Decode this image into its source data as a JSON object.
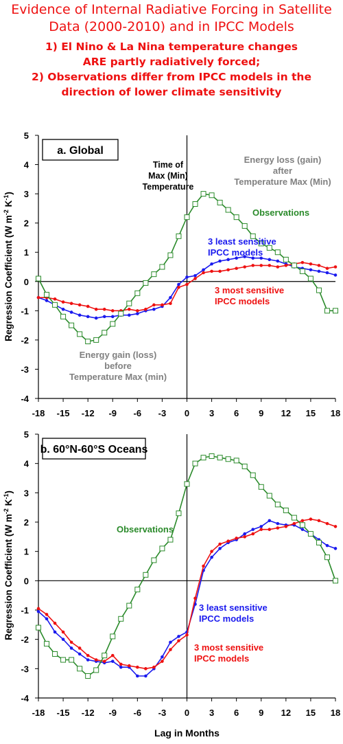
{
  "title": {
    "lines": [
      "Evidence of Internal Radiative Forcing in Satellite",
      "Data (2000-2010)  and in IPCC Models"
    ],
    "sub_lines": [
      "1) El Nino & La Nina temperature changes",
      "ARE partly radiatively forced;",
      "2) Observations differ from IPCC models in the",
      "direction of lower climate sensitivity"
    ]
  },
  "colors": {
    "observations": "#2a8a2a",
    "least_sensitive": "#1a1aee",
    "most_sensitive": "#ee1111",
    "annotation": "#808080",
    "title": "#ee1111"
  },
  "chart_data": [
    {
      "type": "line",
      "panel_label": "a. Global",
      "xlabel": "",
      "ylabel": "Regression Coefficient (W m-2 K-1)",
      "xlim": [
        -18,
        18
      ],
      "ylim": [
        -4,
        5
      ],
      "x_ticks": [
        "-18",
        "-15",
        "-12",
        "-9",
        "-6",
        "-3",
        "0",
        "3",
        "6",
        "9",
        "12",
        "15",
        "18"
      ],
      "y_ticks": [
        "-4",
        "-3",
        "-2",
        "-1",
        "0",
        "1",
        "2",
        "3",
        "4",
        "5"
      ],
      "x": [
        -18,
        -17,
        -16,
        -15,
        -14,
        -13,
        -12,
        -11,
        -10,
        -9,
        -8,
        -7,
        -6,
        -5,
        -4,
        -3,
        -2,
        -1,
        0,
        1,
        2,
        3,
        4,
        5,
        6,
        7,
        8,
        9,
        10,
        11,
        12,
        13,
        14,
        15,
        16,
        17,
        18
      ],
      "series": [
        {
          "name": "Observations",
          "key": "observations",
          "marker": "square",
          "values": [
            0.1,
            -0.45,
            -0.8,
            -1.2,
            -1.5,
            -1.8,
            -2.05,
            -2.0,
            -1.75,
            -1.45,
            -1.1,
            -0.75,
            -0.4,
            -0.05,
            0.25,
            0.5,
            0.9,
            1.55,
            2.2,
            2.65,
            3.0,
            2.95,
            2.7,
            2.45,
            2.2,
            1.9,
            1.55,
            1.3,
            1.15,
            1.0,
            0.75,
            0.55,
            0.35,
            0.1,
            -0.3,
            -1.0,
            -1.0
          ]
        },
        {
          "name": "3 least sensitive IPCC models",
          "key": "least_sensitive",
          "marker": "dot",
          "values": [
            -0.55,
            -0.65,
            -0.8,
            -0.95,
            -1.05,
            -1.15,
            -1.2,
            -1.25,
            -1.2,
            -1.2,
            -1.15,
            -1.15,
            -1.1,
            -1.0,
            -0.95,
            -0.85,
            -0.55,
            -0.1,
            0.15,
            0.2,
            0.4,
            0.6,
            0.7,
            0.75,
            0.8,
            0.85,
            0.8,
            0.8,
            0.75,
            0.7,
            0.6,
            0.5,
            0.45,
            0.4,
            0.35,
            0.3,
            0.22
          ]
        },
        {
          "name": "3 most sensitive IPCC models",
          "key": "most_sensitive",
          "marker": "dot",
          "values": [
            -0.55,
            -0.55,
            -0.6,
            -0.7,
            -0.75,
            -0.8,
            -0.85,
            -0.95,
            -0.95,
            -1.0,
            -1.0,
            -0.95,
            -1.0,
            -0.95,
            -0.8,
            -0.8,
            -0.75,
            -0.2,
            -0.1,
            0.1,
            0.3,
            0.35,
            0.35,
            0.4,
            0.45,
            0.5,
            0.55,
            0.55,
            0.55,
            0.5,
            0.55,
            0.6,
            0.65,
            0.6,
            0.55,
            0.45,
            0.5
          ]
        }
      ],
      "annotations": [
        {
          "text_lines": [
            "Time of",
            "Max (Min)",
            "Temperature"
          ],
          "color": "black"
        },
        {
          "text_lines": [
            "Energy loss (gain)",
            "after",
            "Temperature Max (Min)"
          ],
          "color": "grey"
        },
        {
          "text_lines": [
            "Observations"
          ],
          "color": "green"
        },
        {
          "text_lines": [
            "3 least sensitive",
            "IPCC models"
          ],
          "color": "blue"
        },
        {
          "text_lines": [
            "3 most sensitive",
            "IPCC models"
          ],
          "color": "red"
        },
        {
          "text_lines": [
            "Energy gain (loss)",
            "before",
            "Temperature Max (min)"
          ],
          "color": "grey"
        }
      ]
    },
    {
      "type": "line",
      "panel_label": "b. 60°N-60°S Oceans",
      "xlabel": "Lag in Months",
      "ylabel": "Regression Coefficient (W m-2 K-1)",
      "xlim": [
        -18,
        18
      ],
      "ylim": [
        -4,
        5
      ],
      "x_ticks": [
        "-18",
        "-15",
        "-12",
        "-9",
        "-6",
        "-3",
        "0",
        "3",
        "6",
        "9",
        "12",
        "15",
        "18"
      ],
      "y_ticks": [
        "-4",
        "-3",
        "-2",
        "-1",
        "0",
        "1",
        "2",
        "3",
        "4",
        "5"
      ],
      "x": [
        -18,
        -17,
        -16,
        -15,
        -14,
        -13,
        -12,
        -11,
        -10,
        -9,
        -8,
        -7,
        -6,
        -5,
        -4,
        -3,
        -2,
        -1,
        0,
        1,
        2,
        3,
        4,
        5,
        6,
        7,
        8,
        9,
        10,
        11,
        12,
        13,
        14,
        15,
        16,
        17,
        18
      ],
      "series": [
        {
          "name": "Observations",
          "key": "observations",
          "marker": "square",
          "values": [
            -1.6,
            -2.15,
            -2.5,
            -2.7,
            -2.7,
            -3.0,
            -3.25,
            -3.05,
            -2.55,
            -1.9,
            -1.3,
            -0.85,
            -0.3,
            0.2,
            0.7,
            1.1,
            1.4,
            2.3,
            3.3,
            4.0,
            4.2,
            4.25,
            4.2,
            4.15,
            4.1,
            3.9,
            3.6,
            3.2,
            2.9,
            2.6,
            2.4,
            2.15,
            1.9,
            1.6,
            1.3,
            0.8,
            0.0
          ]
        },
        {
          "name": "3 least sensitive IPCC models",
          "key": "least_sensitive",
          "marker": "dot",
          "values": [
            -1.05,
            -1.3,
            -1.75,
            -2.0,
            -2.3,
            -2.5,
            -2.7,
            -2.75,
            -2.8,
            -2.75,
            -2.95,
            -2.95,
            -3.25,
            -3.25,
            -3.0,
            -2.6,
            -2.1,
            -1.9,
            -1.75,
            -0.8,
            0.35,
            0.8,
            1.1,
            1.3,
            1.4,
            1.6,
            1.75,
            1.85,
            2.05,
            1.95,
            1.9,
            1.9,
            1.75,
            1.6,
            1.4,
            1.2,
            1.1
          ]
        },
        {
          "name": "3 most sensitive IPCC models",
          "key": "most_sensitive",
          "marker": "dot",
          "values": [
            -0.95,
            -1.15,
            -1.45,
            -1.75,
            -2.1,
            -2.3,
            -2.55,
            -2.7,
            -2.75,
            -2.55,
            -2.85,
            -2.9,
            -2.95,
            -3.0,
            -2.95,
            -2.75,
            -2.35,
            -2.05,
            -1.85,
            -0.6,
            0.5,
            1.0,
            1.25,
            1.35,
            1.45,
            1.5,
            1.6,
            1.75,
            1.75,
            1.8,
            1.85,
            1.95,
            2.05,
            2.1,
            2.05,
            1.95,
            1.85
          ]
        }
      ],
      "annotations": [
        {
          "text_lines": [
            "Observations"
          ],
          "color": "green"
        },
        {
          "text_lines": [
            "3 least sensitive",
            "IPCC models"
          ],
          "color": "blue"
        },
        {
          "text_lines": [
            "3 most sensitive",
            "IPCC models"
          ],
          "color": "red"
        }
      ]
    }
  ]
}
